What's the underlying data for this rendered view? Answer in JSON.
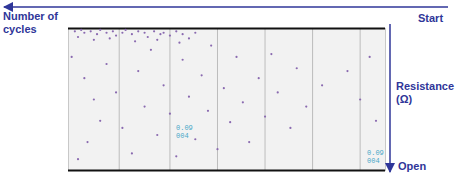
{
  "chart_data": {
    "type": "scatter",
    "x_label": "Number of cycles",
    "y_label": "Resistance (Ω)",
    "annotations": [
      "Start",
      "Open",
      "0.09",
      "004",
      "0.09",
      "004"
    ],
    "x": [
      98,
      96,
      95,
      93,
      91,
      90,
      88,
      86,
      85,
      83,
      82,
      80,
      78,
      76,
      75,
      73,
      71,
      70,
      68,
      66,
      64,
      62,
      60,
      97,
      92,
      87,
      79,
      72,
      65,
      99,
      95,
      92,
      90,
      94,
      97,
      88,
      85,
      83,
      80,
      78,
      76,
      74,
      72,
      70,
      68,
      66,
      64,
      62,
      60,
      58,
      56,
      55,
      53,
      51,
      49,
      47,
      45,
      43,
      40,
      38,
      36,
      34,
      30,
      28,
      25,
      20,
      12,
      8,
      5,
      3
    ],
    "values": [
      2,
      1,
      3,
      2,
      4,
      1,
      3,
      2,
      5,
      3,
      1,
      4,
      2,
      3,
      6,
      2,
      4,
      3,
      5,
      2,
      4,
      7,
      3,
      6,
      8,
      7,
      9,
      8,
      10,
      20,
      35,
      50,
      65,
      80,
      92,
      25,
      45,
      70,
      88,
      30,
      55,
      15,
      75,
      40,
      60,
      90,
      22,
      48,
      78,
      33,
      58,
      12,
      85,
      42,
      66,
      20,
      52,
      80,
      35,
      62,
      18,
      45,
      70,
      28,
      55,
      40,
      30,
      50,
      20,
      65
    ],
    "color": "#8a6ab0",
    "xlim": [
      100,
      0
    ],
    "ylim": [
      100,
      0
    ],
    "xticks": [
      84,
      68,
      53,
      38,
      23,
      8
    ],
    "grid": true,
    "tick_labels": false
  }
}
